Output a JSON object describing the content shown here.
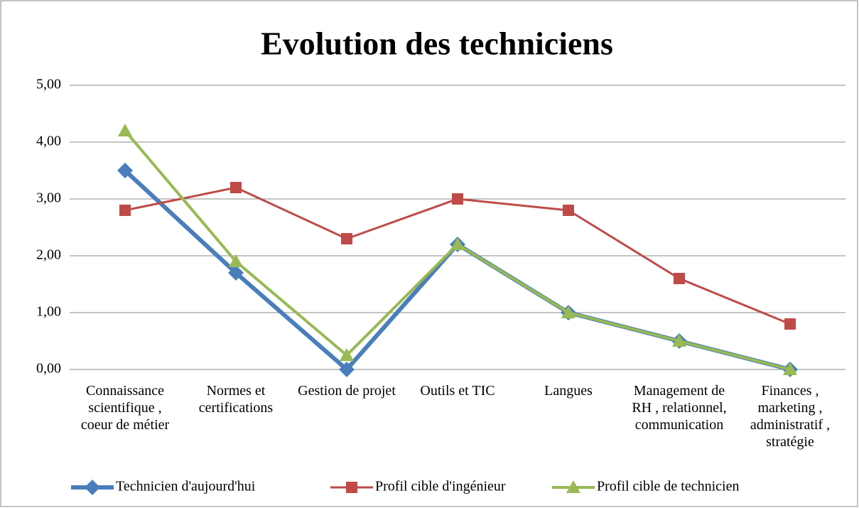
{
  "chart_data": {
    "type": "line",
    "title": "Evolution des techniciens",
    "categories": [
      "Connaissance scientifique , coeur de métier",
      "Normes et certifications",
      "Gestion de projet",
      "Outils et TIC",
      "Langues",
      "Management de RH , relationnel, communication",
      "Finances , marketing , administratif , stratégie"
    ],
    "series": [
      {
        "name": "Technicien d'aujourd'hui",
        "color": "#4a7ebb",
        "marker": "diamond",
        "values": [
          3.5,
          1.7,
          0.0,
          2.2,
          1.0,
          0.5,
          0.0
        ]
      },
      {
        "name": "Profil cible d'ingénieur",
        "color": "#be4b48",
        "marker": "square",
        "values": [
          2.8,
          3.2,
          2.3,
          3.0,
          2.8,
          1.6,
          0.8
        ]
      },
      {
        "name": "Profil cible de technicien",
        "color": "#98b954",
        "marker": "triangle",
        "values": [
          4.2,
          1.9,
          0.25,
          2.2,
          1.0,
          0.5,
          0.0
        ]
      }
    ],
    "ylim": [
      0,
      5
    ],
    "yticks": [
      {
        "value": 0,
        "label": "0,00"
      },
      {
        "value": 1,
        "label": "1,00"
      },
      {
        "value": 2,
        "label": "2,00"
      },
      {
        "value": 3,
        "label": "3,00"
      },
      {
        "value": 4,
        "label": "4,00"
      },
      {
        "value": 5,
        "label": "5,00"
      }
    ],
    "grid": true,
    "legend": "bottom"
  }
}
